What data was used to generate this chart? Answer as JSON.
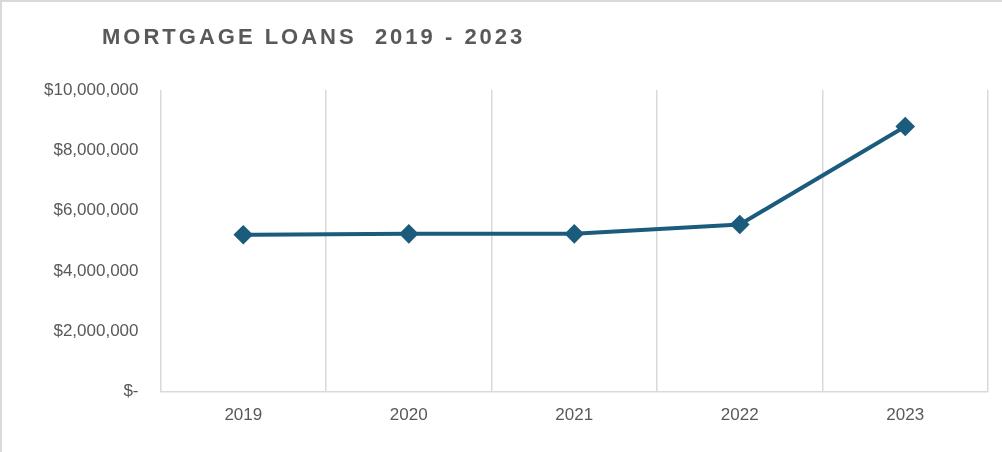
{
  "chart_data": {
    "type": "line",
    "title": "MORTGAGE LOANS  2019 - 2023",
    "categories": [
      "2019",
      "2020",
      "2021",
      "2022",
      "2023"
    ],
    "series": [
      {
        "color": "#1b5c7c",
        "values": [
          5200000,
          5230000,
          5230000,
          5540000,
          8790000
        ]
      }
    ],
    "ylim": [
      0,
      10000000
    ],
    "yticks": [
      {
        "value": 0,
        "label": "$-"
      },
      {
        "value": 2000000,
        "label": "$2,000,000"
      },
      {
        "value": 4000000,
        "label": "$4,000,000"
      },
      {
        "value": 6000000,
        "label": "$6,000,000"
      },
      {
        "value": 8000000,
        "label": "$8,000,000"
      },
      {
        "value": 10000000,
        "label": "$10,000,000"
      }
    ],
    "grid": "x",
    "legend": false,
    "marker": "diamond",
    "line_style": "solid"
  }
}
